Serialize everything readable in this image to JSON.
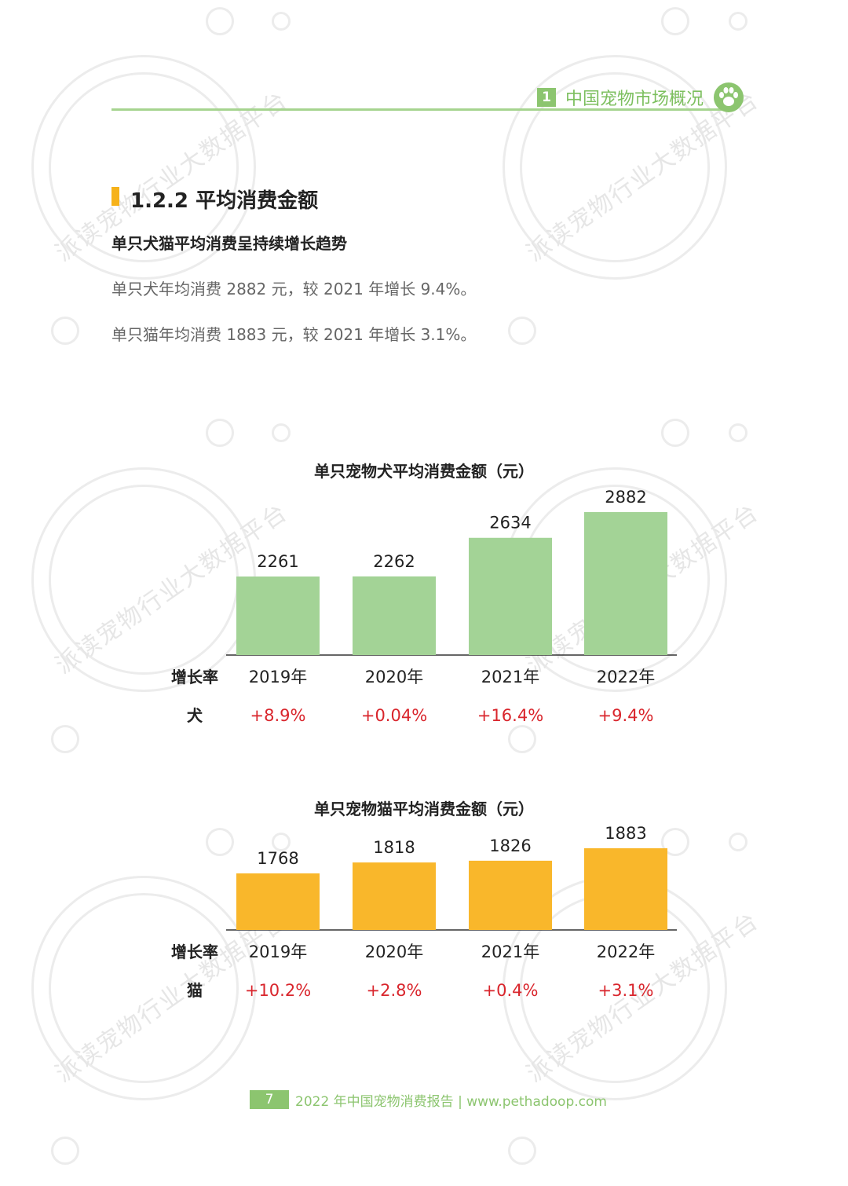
{
  "header": {
    "chapter_number": "1",
    "chapter_title": "中国宠物市场概况",
    "icon": "paw-icon"
  },
  "section": {
    "title": "1.2.2 平均消费金额",
    "subhead": "单只犬猫平均消费呈持续增长趋势",
    "lines": [
      "单只犬年均消费 2882 元，较 2021 年增长 9.4%。",
      "单只猫年均消费 1883 元，较 2021 年增长 3.1%。"
    ]
  },
  "watermark": "派读宠物行业大数据平台",
  "colors": {
    "green_bar": "#a3d396",
    "yellow_bar": "#f9b72b",
    "rate_red": "#d9252c",
    "accent_green": "#8cc56f"
  },
  "chart_data": [
    {
      "type": "bar",
      "title": "单只宠物犬平均消费金额（元）",
      "categories": [
        "2019年",
        "2020年",
        "2021年",
        "2022年"
      ],
      "values": [
        2261,
        2262,
        2634,
        2882
      ],
      "growth_label": "增长率",
      "growth_series_label": "犬",
      "growth_rates": [
        "+8.9%",
        "+0.04%",
        "+16.4%",
        "+9.4%"
      ],
      "color": "#a3d396"
    },
    {
      "type": "bar",
      "title": "单只宠物猫平均消费金额（元）",
      "categories": [
        "2019年",
        "2020年",
        "2021年",
        "2022年"
      ],
      "values": [
        1768,
        1818,
        1826,
        1883
      ],
      "growth_label": "增长率",
      "growth_series_label": "猫",
      "growth_rates": [
        "+10.2%",
        "+2.8%",
        "+0.4%",
        "+3.1%"
      ],
      "color": "#f9b72b"
    }
  ],
  "footer": {
    "page": "7",
    "text": "2022 年中国宠物消费报告 | www.pethadoop.com"
  }
}
